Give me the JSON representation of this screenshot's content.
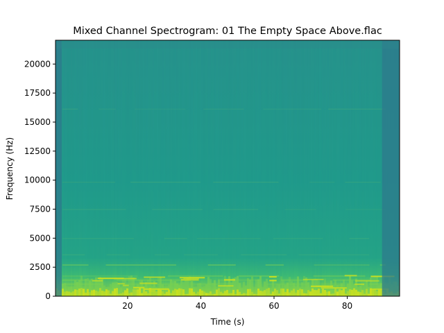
{
  "chart_data": {
    "type": "heatmap",
    "title": "Mixed Channel Spectrogram: 01 The Empty Space Above.flac",
    "xlabel": "Time (s)",
    "ylabel": "Frequency (Hz)",
    "xlim": [
      0.3,
      94.3
    ],
    "ylim": [
      0,
      22050
    ],
    "x_ticks": [
      20,
      40,
      60,
      80
    ],
    "y_ticks": [
      0,
      2500,
      5000,
      7500,
      10000,
      12500,
      15000,
      17500,
      20000
    ],
    "colormap": "viridis",
    "grid": false,
    "colors": {
      "background_high_freq": "#2f8a8c",
      "mid_band": "#21a08a",
      "low_band_energy": "#7ad151",
      "peak_energy": "#c8e020",
      "silence_tail": "#2e7a8c"
    },
    "features": {
      "harmonic_lines_hz": [
        1100,
        1450,
        1800,
        2750,
        3600,
        5000,
        7500,
        9850,
        16150
      ],
      "quiet_time_regions_s": [
        [
          0.3,
          2.0
        ],
        [
          89.5,
          94.3
        ]
      ],
      "loud_time_regions_s": [
        [
          8,
          16
        ],
        [
          17,
          28
        ],
        [
          34,
          46
        ],
        [
          48,
          62
        ],
        [
          70,
          88
        ]
      ]
    }
  }
}
